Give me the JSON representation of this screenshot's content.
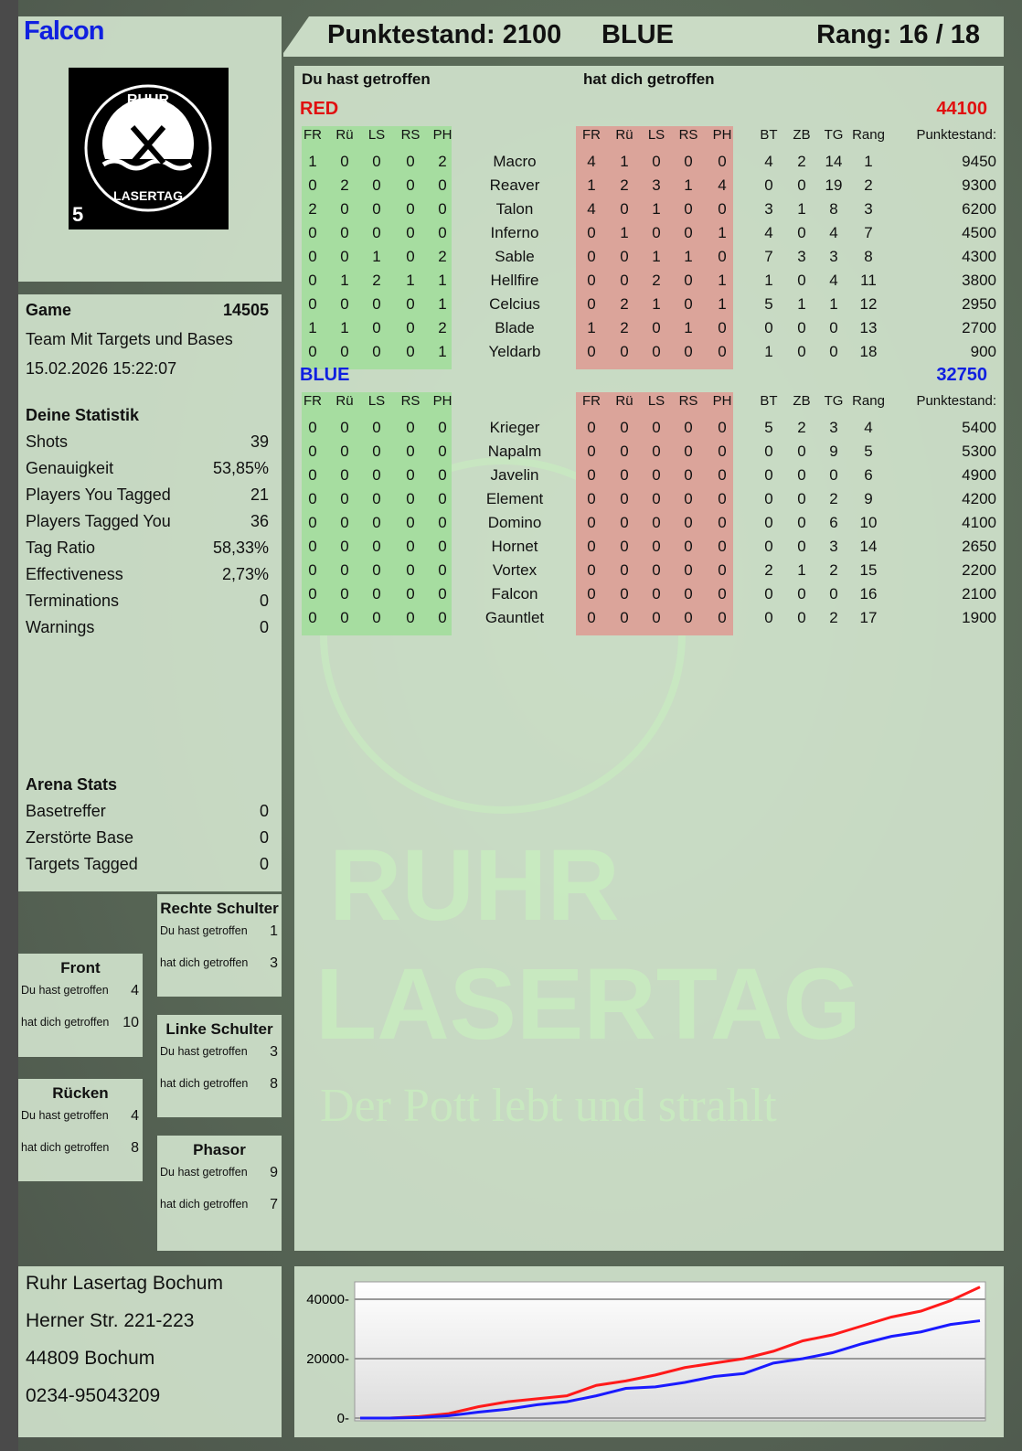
{
  "player": {
    "name": "Falcon",
    "logo_text_top": "RUHR",
    "logo_text_bottom": "LASERTAG",
    "logo_number": "5"
  },
  "header": {
    "score_label": "Punktestand: 2100",
    "team": "BLUE",
    "rank_label": "Rang: 16 / 18"
  },
  "colors": {
    "red": "#e01010",
    "blue": "#1020e0",
    "you_hit_bg": "#a6dda0",
    "hit_you_bg": "#dba49a"
  },
  "game": {
    "label": "Game",
    "number": "14505",
    "mode": "Team Mit Targets und Bases",
    "datetime": "15.02.2026 15:22:07"
  },
  "stats": {
    "title": "Deine Statistik",
    "items": [
      {
        "label": "Shots",
        "value": "39"
      },
      {
        "label": "Genauigkeit",
        "value": "53,85%"
      },
      {
        "label": "Players You Tagged",
        "value": "21"
      },
      {
        "label": "Players Tagged You",
        "value": "36"
      },
      {
        "label": "Tag Ratio",
        "value": "58,33%"
      },
      {
        "label": "Effectiveness",
        "value": "2,73%"
      },
      {
        "label": "Terminations",
        "value": "0"
      },
      {
        "label": "Warnings",
        "value": "0"
      }
    ]
  },
  "arena": {
    "title": "Arena Stats",
    "items": [
      {
        "label": "Basetreffer",
        "value": "0"
      },
      {
        "label": "Zerstörte Base",
        "value": "0"
      },
      {
        "label": "Targets Tagged",
        "value": "0"
      }
    ]
  },
  "zones": [
    {
      "title": "Front",
      "you_hit_label": "Du hast getroffen",
      "you_hit": "4",
      "hit_you_label": "hat dich getroffen",
      "hit_you": "10"
    },
    {
      "title": "Rücken",
      "you_hit_label": "Du hast getroffen",
      "you_hit": "4",
      "hit_you_label": "hat dich getroffen",
      "hit_you": "8"
    },
    {
      "title": "Rechte Schulter",
      "you_hit_label": "Du hast getroffen",
      "you_hit": "1",
      "hit_you_label": "hat dich getroffen",
      "hit_you": "3"
    },
    {
      "title": "Linke Schulter",
      "you_hit_label": "Du hast getroffen",
      "you_hit": "3",
      "hit_you_label": "hat dich getroffen",
      "hit_you": "8"
    },
    {
      "title": "Phasor",
      "you_hit_label": "Du hast getroffen",
      "you_hit": "9",
      "hit_you_label": "hat dich getroffen",
      "hit_you": "7"
    }
  ],
  "table": {
    "you_hit_title": "Du hast getroffen",
    "hit_you_title": "hat dich getroffen",
    "hit_columns": [
      "FR",
      "Rü",
      "LS",
      "RS",
      "PH"
    ],
    "stat_columns": [
      "BT",
      "ZB",
      "TG",
      "Rang",
      "Punktestand:"
    ],
    "teams": [
      {
        "name": "RED",
        "score": "44100",
        "color": "#e01010",
        "players": [
          {
            "name": "Macro",
            "you_hit": [
              "1",
              "0",
              "0",
              "0",
              "2"
            ],
            "hit_you": [
              "4",
              "1",
              "0",
              "0",
              "0"
            ],
            "stats": [
              "4",
              "2",
              "14",
              "1",
              "9450"
            ]
          },
          {
            "name": "Reaver",
            "you_hit": [
              "0",
              "2",
              "0",
              "0",
              "0"
            ],
            "hit_you": [
              "1",
              "2",
              "3",
              "1",
              "4"
            ],
            "stats": [
              "0",
              "0",
              "19",
              "2",
              "9300"
            ]
          },
          {
            "name": "Talon",
            "you_hit": [
              "2",
              "0",
              "0",
              "0",
              "0"
            ],
            "hit_you": [
              "4",
              "0",
              "1",
              "0",
              "0"
            ],
            "stats": [
              "3",
              "1",
              "8",
              "3",
              "6200"
            ]
          },
          {
            "name": "Inferno",
            "you_hit": [
              "0",
              "0",
              "0",
              "0",
              "0"
            ],
            "hit_you": [
              "0",
              "1",
              "0",
              "0",
              "1"
            ],
            "stats": [
              "4",
              "0",
              "4",
              "7",
              "4500"
            ]
          },
          {
            "name": "Sable",
            "you_hit": [
              "0",
              "0",
              "1",
              "0",
              "2"
            ],
            "hit_you": [
              "0",
              "0",
              "1",
              "1",
              "0"
            ],
            "stats": [
              "7",
              "3",
              "3",
              "8",
              "4300"
            ]
          },
          {
            "name": "Hellfire",
            "you_hit": [
              "0",
              "1",
              "2",
              "1",
              "1"
            ],
            "hit_you": [
              "0",
              "0",
              "2",
              "0",
              "1"
            ],
            "stats": [
              "1",
              "0",
              "4",
              "11",
              "3800"
            ]
          },
          {
            "name": "Celcius",
            "you_hit": [
              "0",
              "0",
              "0",
              "0",
              "1"
            ],
            "hit_you": [
              "0",
              "2",
              "1",
              "0",
              "1"
            ],
            "stats": [
              "5",
              "1",
              "1",
              "12",
              "2950"
            ]
          },
          {
            "name": "Blade",
            "you_hit": [
              "1",
              "1",
              "0",
              "0",
              "2"
            ],
            "hit_you": [
              "1",
              "2",
              "0",
              "1",
              "0"
            ],
            "stats": [
              "0",
              "0",
              "0",
              "13",
              "2700"
            ]
          },
          {
            "name": "Yeldarb",
            "you_hit": [
              "0",
              "0",
              "0",
              "0",
              "1"
            ],
            "hit_you": [
              "0",
              "0",
              "0",
              "0",
              "0"
            ],
            "stats": [
              "1",
              "0",
              "0",
              "18",
              "900"
            ]
          }
        ]
      },
      {
        "name": "BLUE",
        "score": "32750",
        "color": "#1020e0",
        "players": [
          {
            "name": "Krieger",
            "you_hit": [
              "0",
              "0",
              "0",
              "0",
              "0"
            ],
            "hit_you": [
              "0",
              "0",
              "0",
              "0",
              "0"
            ],
            "stats": [
              "5",
              "2",
              "3",
              "4",
              "5400"
            ]
          },
          {
            "name": "Napalm",
            "you_hit": [
              "0",
              "0",
              "0",
              "0",
              "0"
            ],
            "hit_you": [
              "0",
              "0",
              "0",
              "0",
              "0"
            ],
            "stats": [
              "0",
              "0",
              "9",
              "5",
              "5300"
            ]
          },
          {
            "name": "Javelin",
            "you_hit": [
              "0",
              "0",
              "0",
              "0",
              "0"
            ],
            "hit_you": [
              "0",
              "0",
              "0",
              "0",
              "0"
            ],
            "stats": [
              "0",
              "0",
              "0",
              "6",
              "4900"
            ]
          },
          {
            "name": "Element",
            "you_hit": [
              "0",
              "0",
              "0",
              "0",
              "0"
            ],
            "hit_you": [
              "0",
              "0",
              "0",
              "0",
              "0"
            ],
            "stats": [
              "0",
              "0",
              "2",
              "9",
              "4200"
            ]
          },
          {
            "name": "Domino",
            "you_hit": [
              "0",
              "0",
              "0",
              "0",
              "0"
            ],
            "hit_you": [
              "0",
              "0",
              "0",
              "0",
              "0"
            ],
            "stats": [
              "0",
              "0",
              "6",
              "10",
              "4100"
            ]
          },
          {
            "name": "Hornet",
            "you_hit": [
              "0",
              "0",
              "0",
              "0",
              "0"
            ],
            "hit_you": [
              "0",
              "0",
              "0",
              "0",
              "0"
            ],
            "stats": [
              "0",
              "0",
              "3",
              "14",
              "2650"
            ]
          },
          {
            "name": "Vortex",
            "you_hit": [
              "0",
              "0",
              "0",
              "0",
              "0"
            ],
            "hit_you": [
              "0",
              "0",
              "0",
              "0",
              "0"
            ],
            "stats": [
              "2",
              "1",
              "2",
              "15",
              "2200"
            ]
          },
          {
            "name": "Falcon",
            "you_hit": [
              "0",
              "0",
              "0",
              "0",
              "0"
            ],
            "hit_you": [
              "0",
              "0",
              "0",
              "0",
              "0"
            ],
            "stats": [
              "0",
              "0",
              "0",
              "16",
              "2100"
            ]
          },
          {
            "name": "Gauntlet",
            "you_hit": [
              "0",
              "0",
              "0",
              "0",
              "0"
            ],
            "hit_you": [
              "0",
              "0",
              "0",
              "0",
              "0"
            ],
            "stats": [
              "0",
              "0",
              "2",
              "17",
              "1900"
            ]
          }
        ]
      }
    ]
  },
  "address": {
    "lines": [
      "Ruhr Lasertag Bochum",
      "Herner Str. 221-223",
      "44809 Bochum",
      "0234-95043209"
    ]
  },
  "watermark": {
    "line1": "RUHR",
    "line2": "LASERTAG",
    "slogan": "Der Pott lebt und strahlt"
  },
  "chart_data": {
    "type": "line",
    "title": "",
    "xlabel": "",
    "ylabel": "",
    "ylim": [
      0,
      45000
    ],
    "yticks": [
      "0",
      "20000",
      "40000"
    ],
    "grid": true,
    "legend": "none",
    "series": [
      {
        "color": "#ff1a1a",
        "values": [
          0,
          0,
          500,
          1500,
          3800,
          5500,
          6500,
          7500,
          11000,
          12500,
          14500,
          17000,
          18500,
          20000,
          22500,
          26000,
          28000,
          31000,
          34000,
          36000,
          39500,
          44100
        ]
      },
      {
        "color": "#1a1aff",
        "values": [
          0,
          0,
          200,
          800,
          2000,
          3000,
          4500,
          5500,
          7500,
          10000,
          10500,
          12000,
          14000,
          15000,
          18500,
          20000,
          22000,
          25000,
          27500,
          29000,
          31500,
          32750
        ]
      }
    ]
  }
}
